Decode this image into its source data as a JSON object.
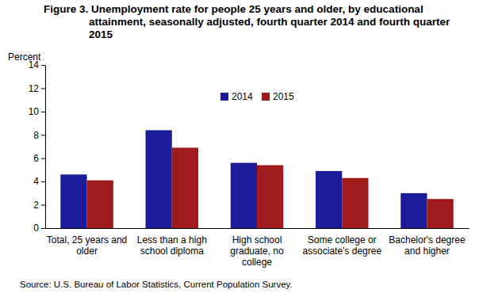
{
  "chart_data": {
    "type": "bar",
    "title": "Figure 3. Unemployment rate for people 25 years and older, by educational attainment, seasonally adjusted, fourth quarter 2014 and fourth quarter 2015",
    "y_label": "Percent",
    "source": "Source: U.S. Bureau of Labor Statistics, Current Population Survey.",
    "categories": [
      "Total, 25 years and older",
      "Less than a high school diploma",
      "High school graduate, no college",
      "Some college or associate's degree",
      "Bachelor's degree and higher"
    ],
    "series": [
      {
        "name": "2014",
        "color": "#1c1c9a",
        "values": [
          4.6,
          8.4,
          5.6,
          4.9,
          3.0
        ]
      },
      {
        "name": "2015",
        "color": "#a01c1c",
        "values": [
          4.1,
          6.9,
          5.4,
          4.3,
          2.5
        ]
      }
    ],
    "ylim": [
      0,
      14
    ],
    "yticks": [
      0,
      2,
      4,
      6,
      8,
      10,
      12,
      14
    ],
    "grid": false,
    "legend": "top"
  }
}
